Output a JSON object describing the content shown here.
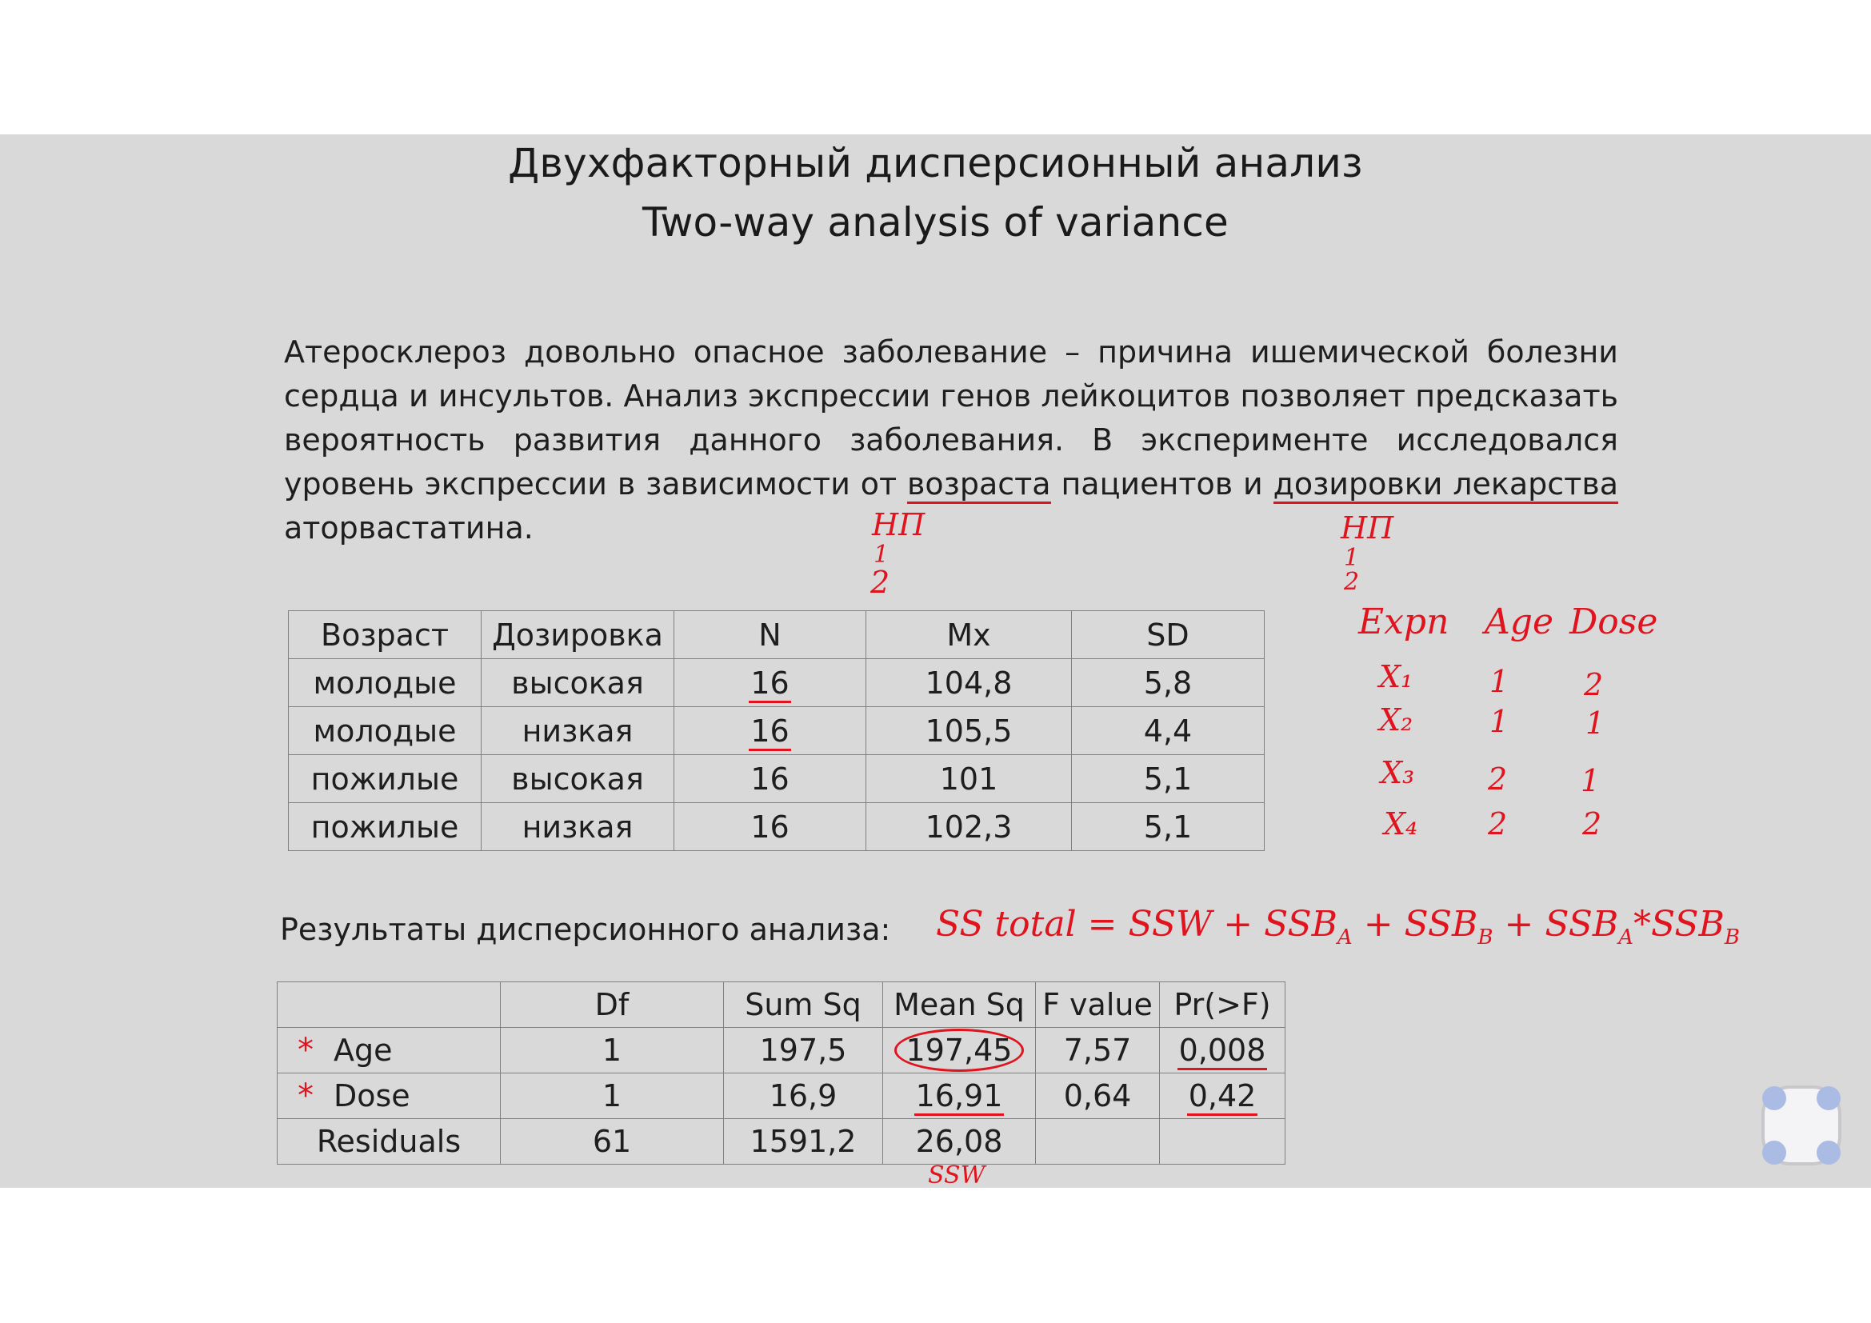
{
  "slide": {
    "title_ru": "Двухфакторный дисперсионный анализ",
    "title_en": "Two-way analysis of variance",
    "paragraph": {
      "p1": "Атеросклероз довольно опасное заболевание – причина ишемической болезни сердца и инсультов. Анализ экспрессии генов лейкоцитов позволяет предсказать вероятность развития данного заболевания.  В эксперименте исследовался уровень экспрессии в зависимости от ",
      "age_word": "возраста",
      "p2": " пациентов и ",
      "dose_words": "дозировки лекарства",
      "p3": " аторвастатина."
    },
    "desc_table": {
      "headers": [
        "Возраст",
        "Дозировка",
        "N",
        "Mx",
        "SD"
      ],
      "rows": [
        [
          "молодые",
          "высокая",
          "16",
          "104,8",
          "5,8"
        ],
        [
          "молодые",
          "низкая",
          "16",
          "105,5",
          "4,4"
        ],
        [
          "пожилые",
          "высокая",
          "16",
          "101",
          "5,1"
        ],
        [
          "пожилые",
          "низкая",
          "16",
          "102,3",
          "5,1"
        ]
      ]
    },
    "results_label": "Результаты дисперсионного анализа:",
    "anova_table": {
      "headers": [
        "",
        "Df",
        "Sum Sq",
        "Mean Sq",
        "F value",
        "Pr(>F)"
      ],
      "rows": [
        [
          "Age",
          "1",
          "197,5",
          "197,45",
          "7,57",
          "0,008"
        ],
        [
          "Dose",
          "1",
          "16,9",
          "16,91",
          "0,64",
          "0,42"
        ],
        [
          "Residuals",
          "61",
          "1591,2",
          "26,08",
          "",
          ""
        ]
      ]
    }
  },
  "annotations": {
    "np_age": "НП",
    "np_age_1": "1",
    "np_age_2": "2",
    "np_dose": "НП",
    "np_dose_1": "1",
    "np_dose_2": "2",
    "design_headers": [
      "Expn",
      "Age",
      "Dose"
    ],
    "design_rows": [
      [
        "X₁",
        "1",
        "2"
      ],
      [
        "X₂",
        "1",
        "1"
      ],
      [
        "X₃",
        "2",
        "1"
      ],
      [
        "X₄",
        "2",
        "2"
      ]
    ],
    "ss_formula": {
      "lhs": "SS total = SSW + SSB",
      "a": "A",
      "plus_b": " + SSB",
      "b": "B",
      "plus_ab": " + SSB",
      "a2": "A",
      "star": "*",
      "ssb": "SSB",
      "b2": "B"
    },
    "ssw_label": "SSW",
    "stars": [
      "*",
      "*"
    ]
  },
  "colors": {
    "ink_red": "#e0141e",
    "slide_bg": "#d9d9d9",
    "text": "#1e1e1e",
    "grid": "#808080"
  },
  "icons": {
    "floating_control": "four-dots-control-icon"
  }
}
